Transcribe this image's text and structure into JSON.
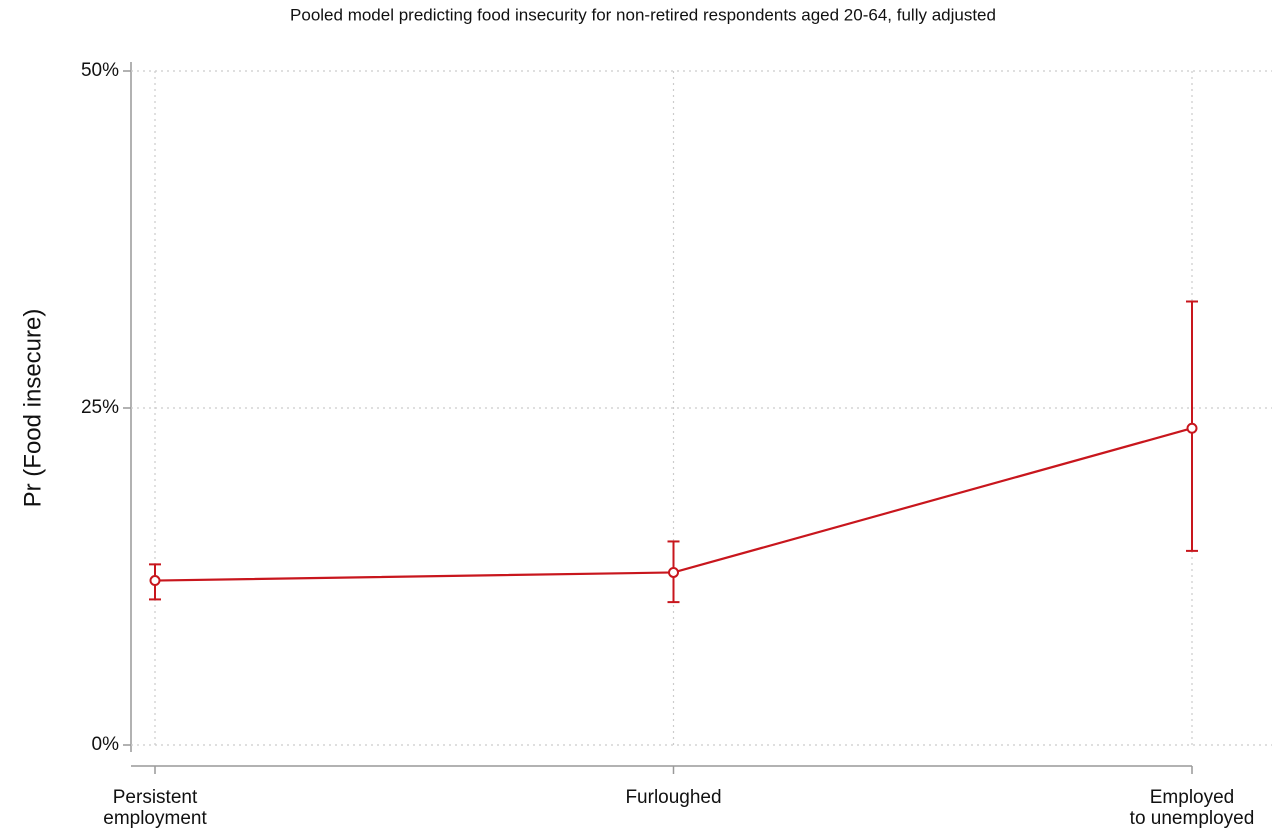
{
  "chart_data": {
    "type": "line",
    "title": "Pooled model predicting food insecurity for non-retired respondents aged 20-64, fully adjusted",
    "y_label": "Pr (Food insecure)",
    "categories": [
      "Persistent\nemployment",
      "Furloughed",
      "Employed\nto unemployed"
    ],
    "series": [
      {
        "color": "#c8161d",
        "values": [
          12.2,
          12.8,
          23.5
        ],
        "lower": [
          10.8,
          10.6,
          14.4
        ],
        "upper": [
          13.4,
          15.1,
          32.9
        ]
      }
    ],
    "ylim": [
      0,
      50
    ],
    "yticks": [
      {
        "value": 0,
        "label": "0%"
      },
      {
        "value": 25,
        "label": "25%"
      },
      {
        "value": 50,
        "label": "50%"
      }
    ],
    "grid": true
  }
}
